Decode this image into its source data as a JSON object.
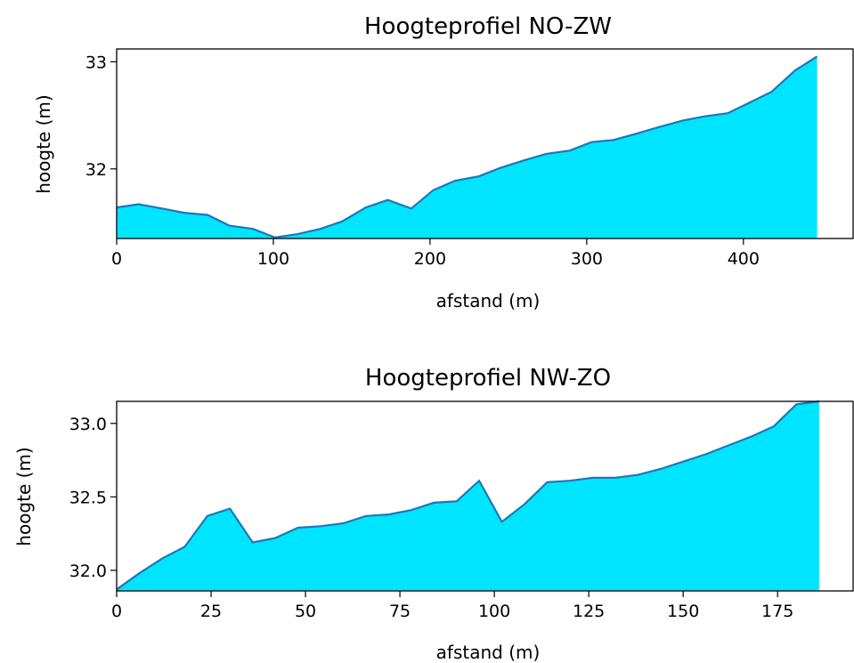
{
  "chart_data": [
    {
      "type": "area",
      "title": "Hoogteprofiel NO-ZW",
      "xlabel": "afstand (m)",
      "ylabel": "hoogte (m)",
      "xlim": [
        0,
        470
      ],
      "ylim": [
        31.35,
        33.12
      ],
      "xticks": [
        0,
        100,
        200,
        300,
        400
      ],
      "xtick_labels": [
        "0",
        "100",
        "200",
        "300",
        "400"
      ],
      "yticks": [
        32,
        33
      ],
      "ytick_labels": [
        "32",
        "33"
      ],
      "grid": false,
      "fill_color": "#00e5ff",
      "line_color": "#1f77b4",
      "x": [
        0,
        14,
        29,
        43,
        58,
        72,
        87,
        101,
        115,
        130,
        144,
        159,
        173,
        188,
        202,
        216,
        231,
        245,
        260,
        274,
        289,
        303,
        317,
        332,
        346,
        361,
        375,
        390,
        404,
        418,
        433,
        447
      ],
      "y": [
        31.64,
        31.67,
        31.63,
        31.59,
        31.57,
        31.47,
        31.44,
        31.36,
        31.39,
        31.44,
        31.51,
        31.64,
        31.71,
        31.63,
        31.8,
        31.89,
        31.93,
        32.01,
        32.08,
        32.14,
        32.17,
        32.25,
        32.27,
        32.33,
        32.39,
        32.45,
        32.49,
        32.52,
        32.62,
        32.72,
        32.92,
        33.05
      ]
    },
    {
      "type": "area",
      "title": "Hoogteprofiel NW-ZO",
      "xlabel": "afstand (m)",
      "ylabel": "hoogte (m)",
      "xlim": [
        0,
        195
      ],
      "ylim": [
        31.86,
        33.15
      ],
      "xticks": [
        0,
        25,
        50,
        75,
        100,
        125,
        150,
        175
      ],
      "xtick_labels": [
        "0",
        "25",
        "50",
        "75",
        "100",
        "125",
        "150",
        "175"
      ],
      "yticks": [
        32.0,
        32.5,
        33.0
      ],
      "ytick_labels": [
        "32.0",
        "32.5",
        "33.0"
      ],
      "grid": false,
      "fill_color": "#00e5ff",
      "line_color": "#1f77b4",
      "x": [
        0,
        6,
        12,
        18,
        24,
        30,
        36,
        42,
        48,
        54,
        60,
        66,
        72,
        78,
        84,
        90,
        96,
        102,
        108,
        114,
        120,
        126,
        132,
        138,
        144,
        150,
        156,
        162,
        168,
        174,
        180,
        186
      ],
      "y": [
        31.87,
        31.98,
        32.08,
        32.16,
        32.37,
        32.42,
        32.19,
        32.22,
        32.29,
        32.3,
        32.32,
        32.37,
        32.38,
        32.41,
        32.46,
        32.47,
        32.61,
        32.33,
        32.45,
        32.6,
        32.61,
        32.63,
        32.63,
        32.65,
        32.69,
        32.74,
        32.79,
        32.85,
        32.91,
        32.98,
        33.13,
        33.15
      ]
    }
  ]
}
